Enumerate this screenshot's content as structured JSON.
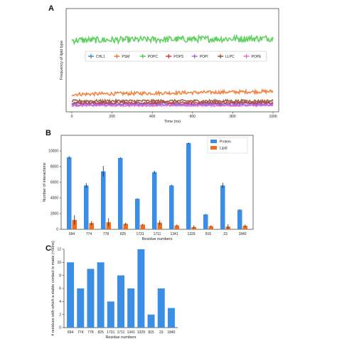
{
  "figure": {
    "panels": [
      "A",
      "B",
      "C"
    ]
  },
  "chart_data": [
    {
      "panel": "A",
      "type": "line",
      "xlabel": "Time (ns)",
      "ylabel": "Frequency of lipid type",
      "xlim": [
        0,
        1000
      ],
      "ylim": [
        0,
        100
      ],
      "x_ticks": [
        0,
        200,
        400,
        600,
        800,
        1000
      ],
      "grid": false,
      "legend_position": "middle",
      "series": [
        {
          "name": "CHL1",
          "color": "#3a7fd5",
          "mean": 4,
          "noise": 1.5,
          "trend": 0
        },
        {
          "name": "PSM",
          "color": "#f07020",
          "mean": 14,
          "noise": 1.8,
          "trend": 3
        },
        {
          "name": "POPC",
          "color": "#44c844",
          "mean": 71,
          "noise": 3.5,
          "trend": 2
        },
        {
          "name": "POPS",
          "color": "#d42a2a",
          "mean": 5,
          "noise": 1.2,
          "trend": 0
        },
        {
          "name": "POPI",
          "color": "#9b5fd6",
          "mean": 3,
          "noise": 1.0,
          "trend": 0
        },
        {
          "name": "LLPC",
          "color": "#8b4a2b",
          "mean": 7,
          "noise": 1.3,
          "trend": 0
        },
        {
          "name": "POPE",
          "color": "#e860c8",
          "mean": 2,
          "noise": 0.8,
          "trend": 0
        }
      ]
    },
    {
      "panel": "B",
      "type": "bar",
      "xlabel": "Residue numbers",
      "ylabel": "Number of interactions",
      "ylim": [
        0,
        12000
      ],
      "y_ticks": [
        0,
        2000,
        4000,
        6000,
        8000,
        10000
      ],
      "legend_position": "top-right",
      "categories": [
        "694",
        "774",
        "778",
        "825",
        "1731",
        "1711",
        "1341",
        "1329",
        "815",
        "23",
        "1840"
      ],
      "series": [
        {
          "name": "Protein",
          "color": "#3a8ee6",
          "values": [
            9200,
            5600,
            7400,
            9100,
            3900,
            7300,
            5600,
            11000,
            1900,
            5600,
            2500
          ],
          "errors": [
            150,
            300,
            700,
            100,
            50,
            200,
            100,
            100,
            50,
            350,
            60
          ]
        },
        {
          "name": "Lipid",
          "color": "#f26a1b",
          "values": [
            1200,
            800,
            900,
            700,
            600,
            850,
            500,
            300,
            400,
            350,
            450
          ],
          "errors": [
            600,
            250,
            500,
            150,
            100,
            300,
            100,
            200,
            100,
            300,
            150
          ]
        }
      ]
    },
    {
      "panel": "C",
      "type": "bar",
      "xlabel": "Residue numbers",
      "ylabel": "# residues with which a stable contact is made (>50ns)",
      "ylim": [
        0,
        12
      ],
      "y_ticks": [
        0,
        2,
        4,
        6,
        8,
        10,
        12
      ],
      "categories": [
        "694",
        "774",
        "778",
        "825",
        "1731",
        "1711",
        "1341",
        "1329",
        "815",
        "23",
        "1840"
      ],
      "series": [
        {
          "name": "",
          "color": "#3a8ee6",
          "values": [
            10,
            6,
            9,
            10,
            4,
            8,
            6,
            12,
            2,
            6,
            3
          ]
        }
      ]
    }
  ]
}
